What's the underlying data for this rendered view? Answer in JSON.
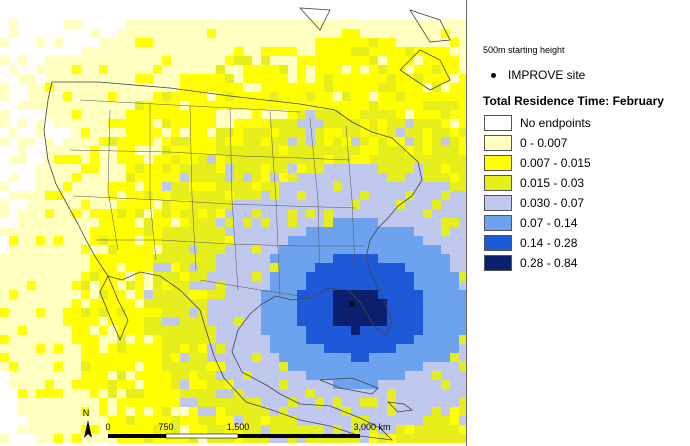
{
  "legend": {
    "starting_height": "500m starting height",
    "site_label": "IMPROVE site",
    "title": "Total Residence Time: February",
    "items": [
      {
        "label": "No endpoints",
        "color": "#ffffff"
      },
      {
        "label": "0 - 0.007",
        "color": "#ffffc0"
      },
      {
        "label": "0.007 - 0.015",
        "color": "#ffff00"
      },
      {
        "label": "0.015 - 0.03",
        "color": "#e6ee1c"
      },
      {
        "label": "0.030 - 0.07",
        "color": "#c0c8ee"
      },
      {
        "label": "0.07 - 0.14",
        "color": "#6ca2ee"
      },
      {
        "label": "0.14 - 0.28",
        "color": "#1e5ad8"
      },
      {
        "label": "0.28 - 0.84",
        "color": "#0a1f6e"
      }
    ]
  },
  "scale_bar": {
    "ticks": [
      "0",
      "750",
      "1,500",
      "3,000 km"
    ]
  },
  "north_arrow": {
    "label": "N"
  }
}
